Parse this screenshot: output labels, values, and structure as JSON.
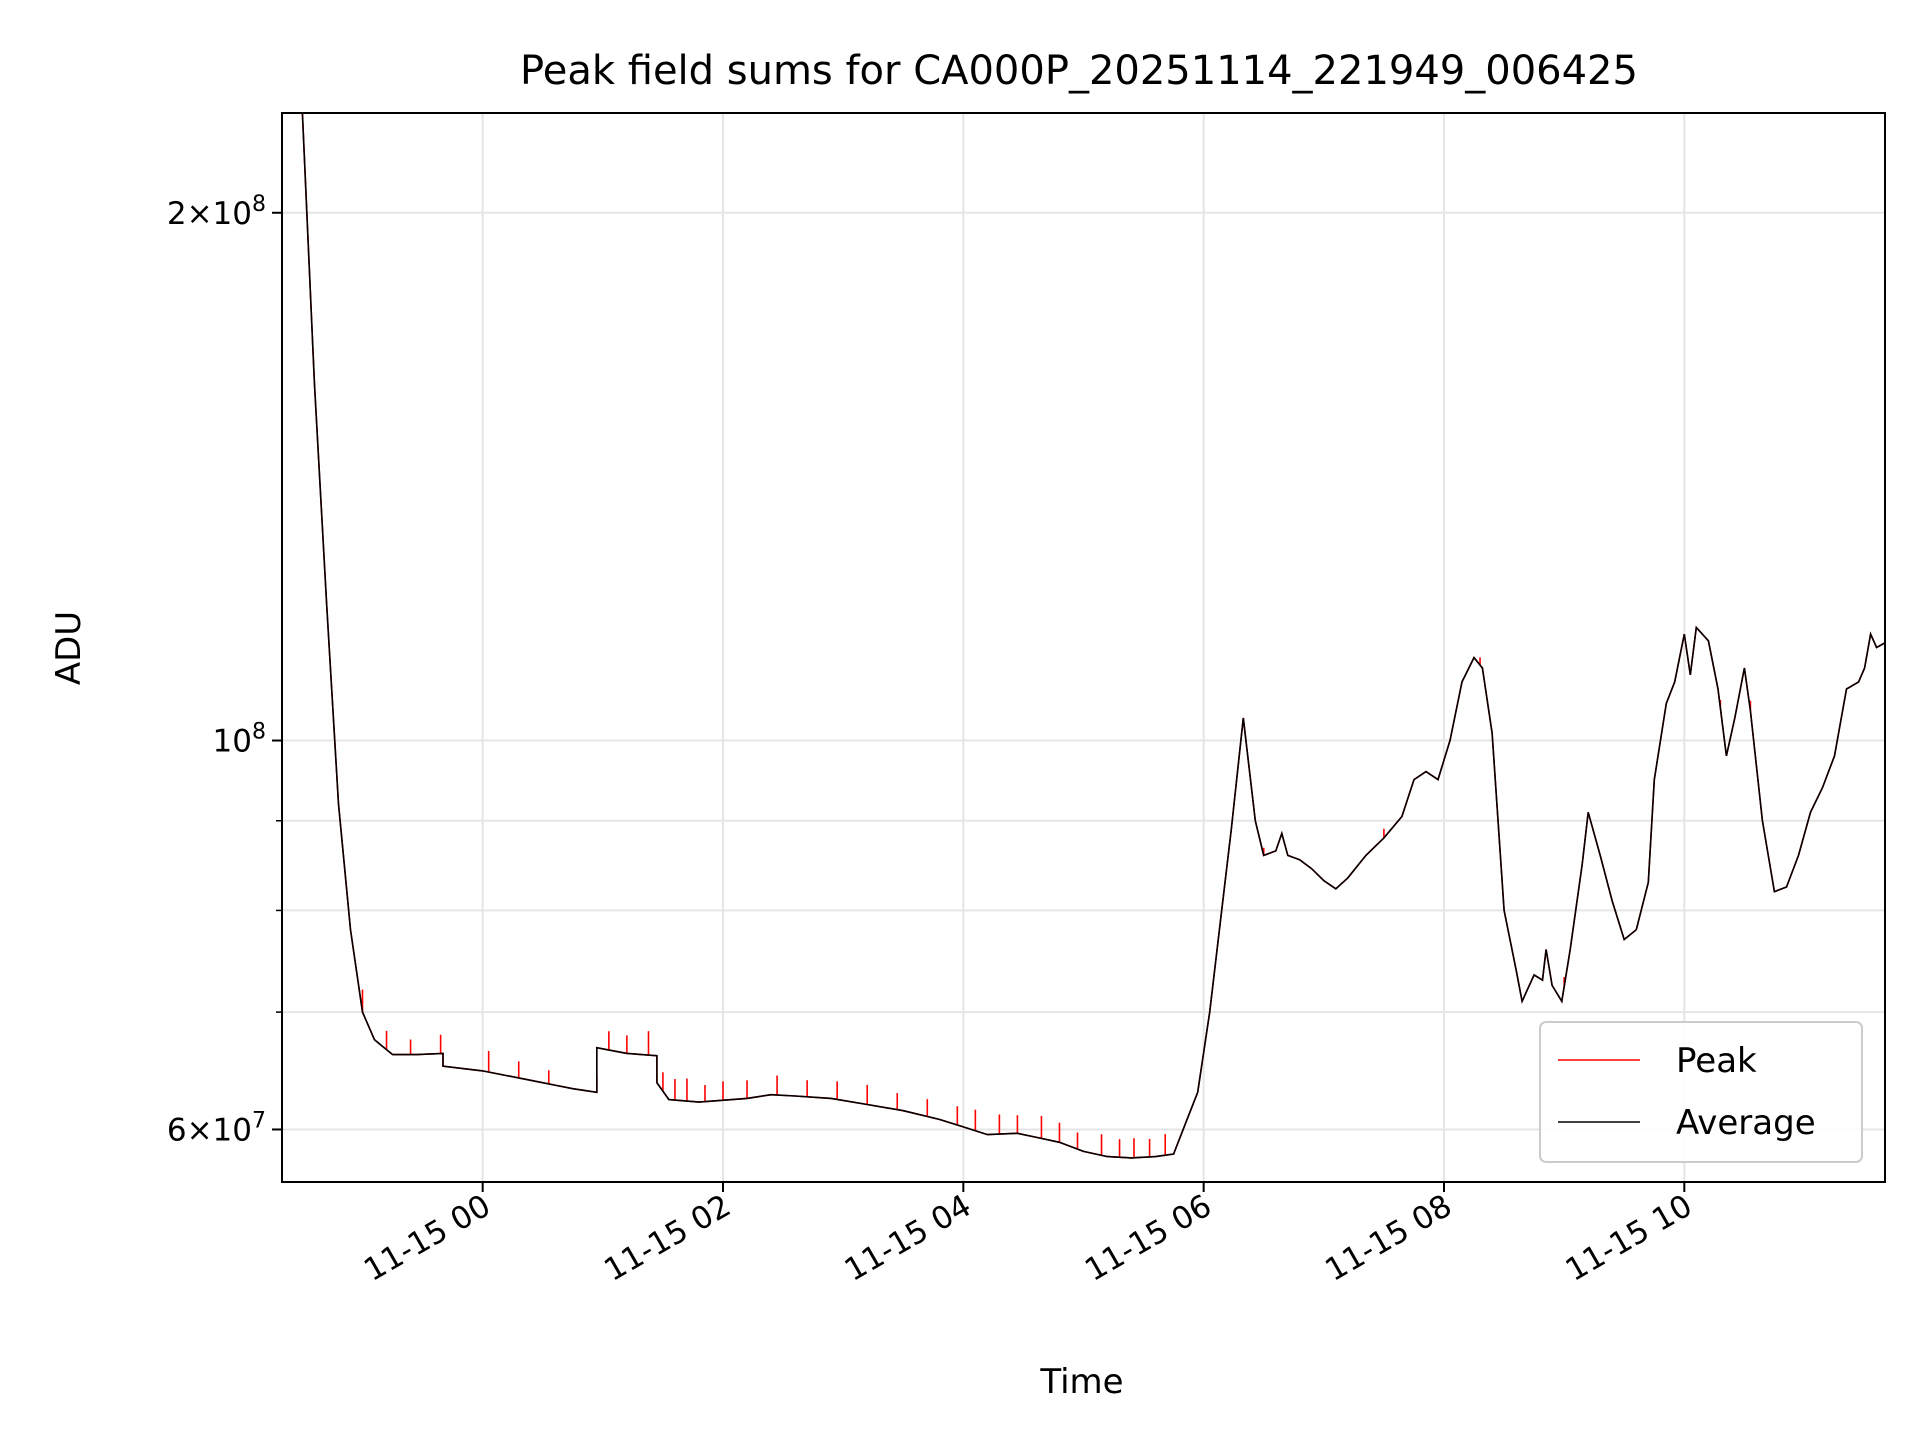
{
  "chart_data": {
    "type": "line",
    "title": "Peak field sums for CA000P_20251114_221949_006425",
    "xlabel": "Time",
    "ylabel": "ADU",
    "yscale": "log",
    "grid": true,
    "legend_loc": "lower right",
    "xlim_hours": [
      -1.67,
      11.67
    ],
    "ylim": [
      56000000,
      228000000
    ],
    "x_ticks": [
      {
        "hour": 0,
        "label": "11-15 00"
      },
      {
        "hour": 2,
        "label": "11-15 02"
      },
      {
        "hour": 4,
        "label": "11-15 04"
      },
      {
        "hour": 6,
        "label": "11-15 06"
      },
      {
        "hour": 8,
        "label": "11-15 08"
      },
      {
        "hour": 10,
        "label": "11-15 10"
      }
    ],
    "y_major_ticks": [
      {
        "value": 60000000,
        "base": "6",
        "exp": "7"
      },
      {
        "value": 100000000,
        "base": "",
        "exp": "8"
      },
      {
        "value": 200000000,
        "base": "2",
        "exp": "8"
      }
    ],
    "y_minor_ticks": [
      70000000,
      80000000,
      90000000
    ],
    "series": [
      {
        "name": "Peak",
        "color": "#ff0000",
        "note": "tracks Average closely with upward spikes during the low plateau (00:00-05:45)",
        "spikes": [
          [
            -1.0,
            3.0
          ],
          [
            -0.8,
            2.5
          ],
          [
            -0.6,
            2.0
          ],
          [
            -0.35,
            2.5
          ],
          [
            0.05,
            2.8
          ],
          [
            0.3,
            2.2
          ],
          [
            0.55,
            1.8
          ],
          [
            0.95,
            2.0
          ],
          [
            1.05,
            2.5
          ],
          [
            1.2,
            2.4
          ],
          [
            1.38,
            3.2
          ],
          [
            1.5,
            2.5
          ],
          [
            1.6,
            2.8
          ],
          [
            1.7,
            3.0
          ],
          [
            1.85,
            2.2
          ],
          [
            2.0,
            2.5
          ],
          [
            2.2,
            2.4
          ],
          [
            2.45,
            2.6
          ],
          [
            2.7,
            2.2
          ],
          [
            2.95,
            2.4
          ],
          [
            3.2,
            2.6
          ],
          [
            3.45,
            2.2
          ],
          [
            3.7,
            2.3
          ],
          [
            3.95,
            2.5
          ],
          [
            4.1,
            2.8
          ],
          [
            4.3,
            2.6
          ],
          [
            4.45,
            2.4
          ],
          [
            4.65,
            3.0
          ],
          [
            4.8,
            2.6
          ],
          [
            4.95,
            2.2
          ],
          [
            5.15,
            2.8
          ],
          [
            5.3,
            2.4
          ],
          [
            5.42,
            2.6
          ],
          [
            5.55,
            2.4
          ],
          [
            5.68,
            2.8
          ],
          [
            6.5,
            1.0
          ],
          [
            7.5,
            1.2
          ],
          [
            8.3,
            1.0
          ],
          [
            9.0,
            1.2
          ],
          [
            10.3,
            1.0
          ],
          [
            10.55,
            1.3
          ]
        ]
      },
      {
        "name": "Average",
        "color": "#000000",
        "points": [
          [
            -1.65,
            230000000
          ],
          [
            -1.5,
            228000000
          ],
          [
            -1.4,
            160000000
          ],
          [
            -1.3,
            120000000
          ],
          [
            -1.2,
            92000000
          ],
          [
            -1.1,
            78000000
          ],
          [
            -1.0,
            70000000
          ],
          [
            -0.9,
            67500000
          ],
          [
            -0.75,
            66200000
          ],
          [
            -0.55,
            66200000
          ],
          [
            -0.33,
            66300000
          ],
          [
            -0.33,
            65200000
          ],
          [
            0.0,
            64800000
          ],
          [
            0.2,
            64400000
          ],
          [
            0.4,
            64000000
          ],
          [
            0.6,
            63600000
          ],
          [
            0.75,
            63300000
          ],
          [
            0.95,
            63000000
          ],
          [
            0.95,
            66800000
          ],
          [
            1.2,
            66300000
          ],
          [
            1.45,
            66100000
          ],
          [
            1.45,
            63800000
          ],
          [
            1.55,
            62400000
          ],
          [
            1.8,
            62200000
          ],
          [
            2.2,
            62500000
          ],
          [
            2.4,
            62800000
          ],
          [
            2.6,
            62700000
          ],
          [
            2.9,
            62500000
          ],
          [
            3.2,
            62000000
          ],
          [
            3.5,
            61500000
          ],
          [
            3.8,
            60800000
          ],
          [
            4.0,
            60200000
          ],
          [
            4.2,
            59600000
          ],
          [
            4.45,
            59700000
          ],
          [
            4.6,
            59400000
          ],
          [
            4.8,
            59000000
          ],
          [
            5.0,
            58300000
          ],
          [
            5.2,
            57900000
          ],
          [
            5.4,
            57800000
          ],
          [
            5.6,
            57900000
          ],
          [
            5.75,
            58100000
          ],
          [
            5.85,
            60500000
          ],
          [
            5.95,
            63000000
          ],
          [
            6.05,
            70000000
          ],
          [
            6.15,
            80000000
          ],
          [
            6.23,
            89000000
          ],
          [
            6.33,
            103000000
          ],
          [
            6.43,
            90000000
          ],
          [
            6.5,
            86000000
          ],
          [
            6.6,
            86500000
          ],
          [
            6.65,
            88500000
          ],
          [
            6.7,
            86000000
          ],
          [
            6.8,
            85500000
          ],
          [
            6.9,
            84500000
          ],
          [
            7.0,
            83200000
          ],
          [
            7.1,
            82300000
          ],
          [
            7.2,
            83500000
          ],
          [
            7.35,
            86000000
          ],
          [
            7.5,
            88000000
          ],
          [
            7.65,
            90500000
          ],
          [
            7.75,
            95000000
          ],
          [
            7.85,
            96000000
          ],
          [
            7.95,
            95000000
          ],
          [
            8.05,
            100000000
          ],
          [
            8.15,
            108000000
          ],
          [
            8.25,
            111500000
          ],
          [
            8.32,
            110000000
          ],
          [
            8.4,
            101000000
          ],
          [
            8.5,
            80000000
          ],
          [
            8.6,
            74000000
          ],
          [
            8.65,
            71000000
          ],
          [
            8.75,
            73500000
          ],
          [
            8.82,
            73000000
          ],
          [
            8.85,
            76000000
          ],
          [
            8.9,
            72500000
          ],
          [
            8.98,
            71000000
          ],
          [
            9.05,
            76000000
          ],
          [
            9.15,
            85000000
          ],
          [
            9.2,
            91000000
          ],
          [
            9.3,
            86000000
          ],
          [
            9.4,
            81000000
          ],
          [
            9.5,
            77000000
          ],
          [
            9.6,
            78000000
          ],
          [
            9.7,
            83000000
          ],
          [
            9.75,
            95000000
          ],
          [
            9.85,
            105000000
          ],
          [
            9.92,
            108000000
          ],
          [
            10.0,
            115000000
          ],
          [
            10.05,
            109000000
          ],
          [
            10.1,
            116000000
          ],
          [
            10.2,
            114000000
          ],
          [
            10.28,
            107000000
          ],
          [
            10.35,
            98000000
          ],
          [
            10.42,
            103000000
          ],
          [
            10.5,
            110000000
          ],
          [
            10.55,
            104000000
          ],
          [
            10.65,
            90000000
          ],
          [
            10.75,
            82000000
          ],
          [
            10.85,
            82500000
          ],
          [
            10.95,
            86000000
          ],
          [
            11.05,
            91000000
          ],
          [
            11.15,
            94000000
          ],
          [
            11.25,
            98000000
          ],
          [
            11.35,
            107000000
          ],
          [
            11.45,
            108000000
          ],
          [
            11.5,
            110000000
          ],
          [
            11.55,
            115000000
          ],
          [
            11.6,
            113000000
          ],
          [
            11.7,
            114000000
          ],
          [
            11.8,
            118000000
          ],
          [
            11.9,
            119000000
          ],
          [
            12.0,
            116000000
          ],
          [
            12.1,
            114000000
          ],
          [
            12.2,
            103000000
          ],
          [
            12.25,
            97000000
          ],
          [
            12.3,
            88000000
          ],
          [
            12.4,
            87500000
          ],
          [
            12.5,
            86500000
          ],
          [
            12.6,
            89500000
          ],
          [
            12.7,
            90500000
          ],
          [
            12.75,
            89000000
          ],
          [
            12.85,
            85000000
          ],
          [
            12.95,
            78000000
          ],
          [
            13.05,
            75000000
          ],
          [
            13.15,
            71000000
          ],
          [
            13.2,
            70500000
          ],
          [
            13.3,
            73500000
          ],
          [
            13.4,
            78000000
          ],
          [
            13.5,
            88000000
          ],
          [
            13.6,
            110000000
          ],
          [
            13.7,
            150000000
          ],
          [
            13.8,
            200000000
          ],
          [
            13.9,
            228000000
          ]
        ]
      }
    ]
  }
}
